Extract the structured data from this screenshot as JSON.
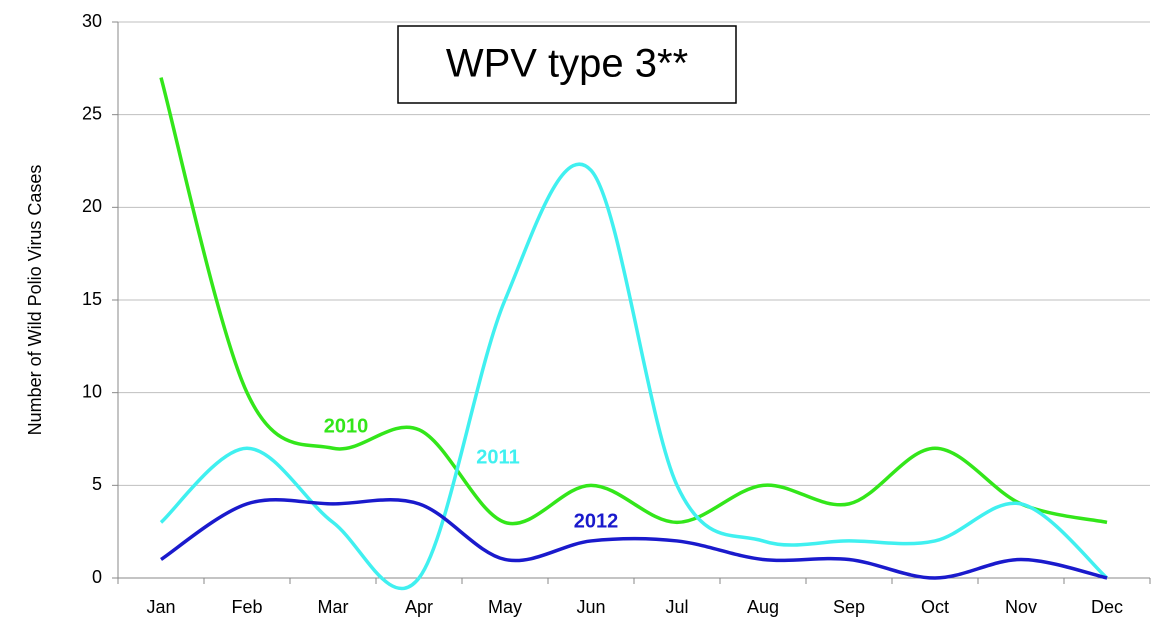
{
  "chart_data": {
    "type": "line",
    "title": "WPV type 3**",
    "y_label": "Number of Wild Polio Virus Cases",
    "categories": [
      "Jan",
      "Feb",
      "Mar",
      "Apr",
      "May",
      "Jun",
      "Jul",
      "Aug",
      "Sep",
      "Oct",
      "Nov",
      "Dec"
    ],
    "series": [
      {
        "name": "2010",
        "color": "#33e61a",
        "values": [
          27,
          10,
          7,
          8,
          3,
          5,
          3,
          5,
          4,
          7,
          4,
          3
        ]
      },
      {
        "name": "2011",
        "color": "#40f0f0",
        "values": [
          3,
          7,
          3,
          0,
          15,
          22,
          5,
          2,
          2,
          2,
          4,
          0
        ]
      },
      {
        "name": "2012",
        "color": "#1a1acc",
        "values": [
          1,
          4,
          4,
          4,
          1,
          2,
          2,
          1,
          1,
          0,
          1,
          0
        ]
      }
    ],
    "ylim": [
      0,
      30
    ],
    "yticks": [
      0,
      5,
      10,
      15,
      20,
      25,
      30
    ],
    "grid": true
  }
}
